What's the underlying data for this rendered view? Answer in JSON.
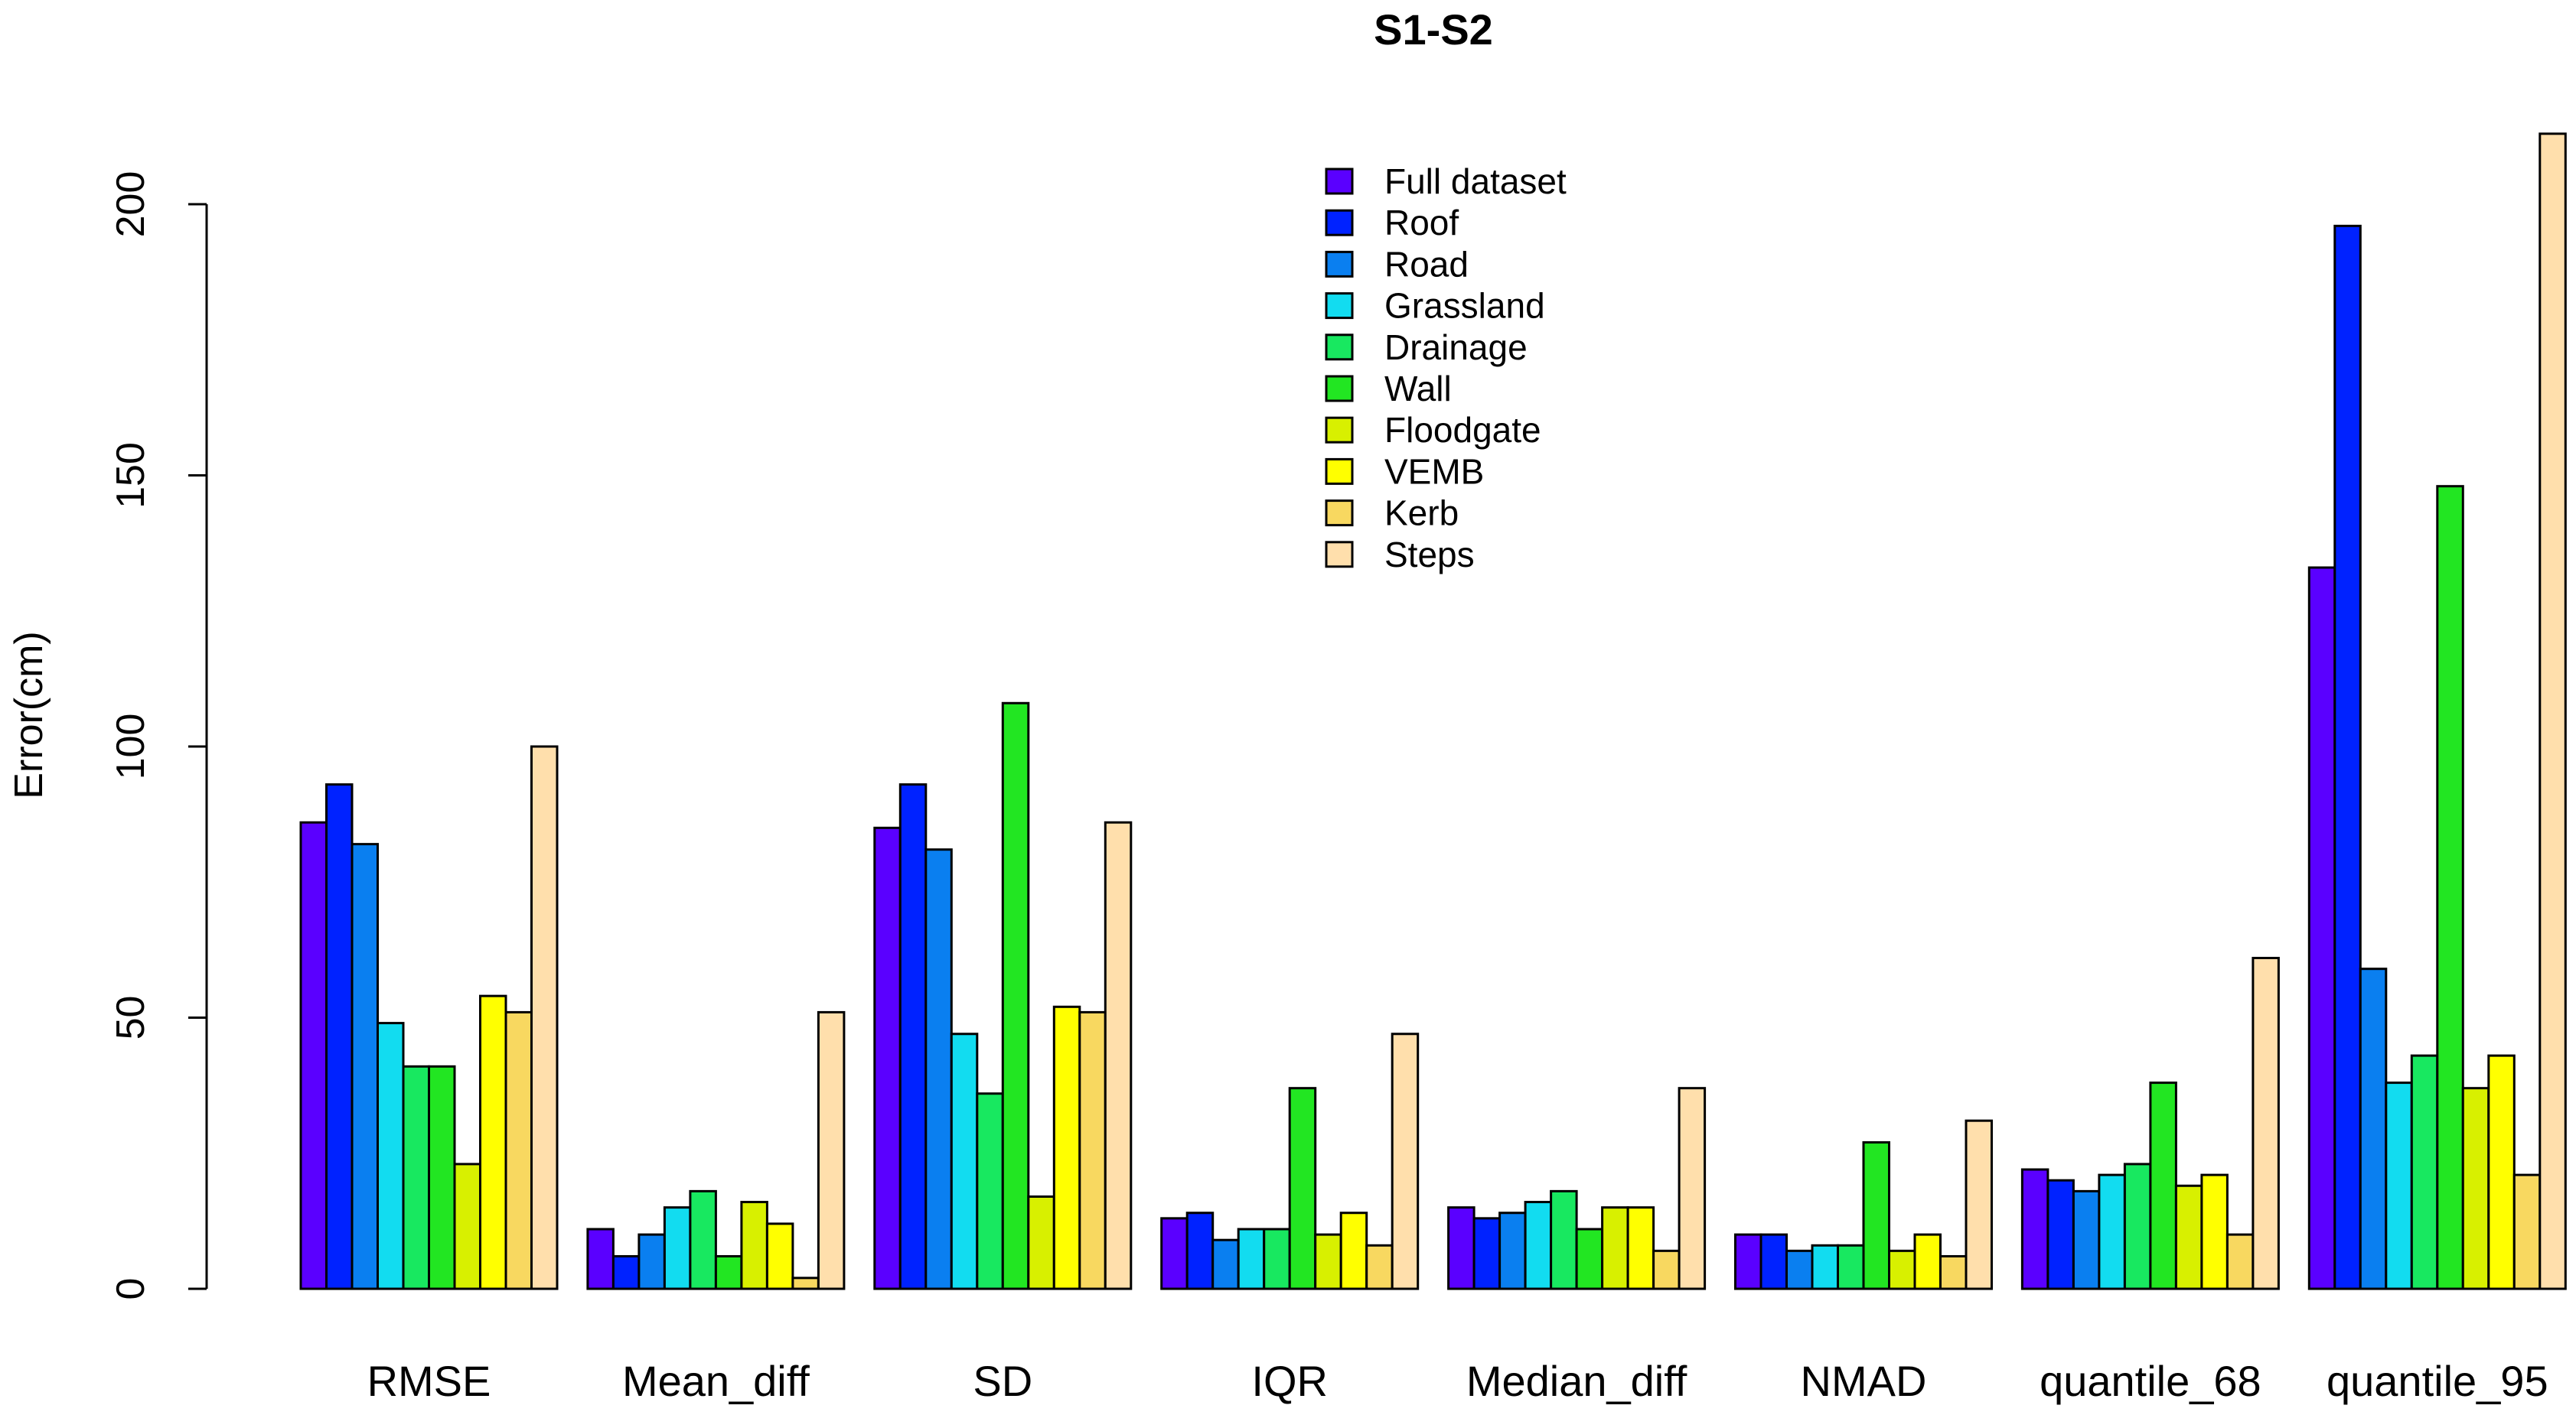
{
  "chart_data": {
    "type": "bar",
    "title": "S1-S2",
    "xlabel": "",
    "ylabel": "Error(cm)",
    "ylim": [
      0,
      215
    ],
    "yticks": [
      0,
      50,
      100,
      150,
      200
    ],
    "grid": false,
    "legend_position": "top-center",
    "categories": [
      "RMSE",
      "Mean_diff",
      "SD",
      "IQR",
      "Median_diff",
      "NMAD",
      "quantile_68",
      "quantile_95"
    ],
    "series": [
      {
        "name": "Full dataset",
        "color": "#5a00ff",
        "values": [
          86,
          11,
          85,
          13,
          15,
          10,
          22,
          133
        ]
      },
      {
        "name": "Roof",
        "color": "#0022ff",
        "values": [
          93,
          6,
          93,
          14,
          13,
          10,
          20,
          196
        ]
      },
      {
        "name": "Road",
        "color": "#0a7ff0",
        "values": [
          82,
          10,
          81,
          9,
          14,
          7,
          18,
          59
        ]
      },
      {
        "name": "Grassland",
        "color": "#12dcf0",
        "values": [
          49,
          15,
          47,
          11,
          16,
          8,
          21,
          38
        ]
      },
      {
        "name": "Drainage",
        "color": "#18e860",
        "values": [
          41,
          18,
          36,
          11,
          18,
          8,
          23,
          43
        ]
      },
      {
        "name": "Wall",
        "color": "#22e622",
        "values": [
          41,
          6,
          108,
          37,
          11,
          27,
          38,
          148
        ]
      },
      {
        "name": "Floodgate",
        "color": "#d8f000",
        "values": [
          23,
          16,
          17,
          10,
          15,
          7,
          19,
          37
        ]
      },
      {
        "name": "VEMB",
        "color": "#ffff00",
        "values": [
          54,
          12,
          52,
          14,
          15,
          10,
          21,
          43
        ]
      },
      {
        "name": "Kerb",
        "color": "#f8d860",
        "values": [
          51,
          2,
          51,
          8,
          7,
          6,
          10,
          21
        ]
      },
      {
        "name": "Steps",
        "color": "#ffdfac",
        "values": [
          100,
          51,
          86,
          47,
          37,
          31,
          61,
          213
        ]
      }
    ]
  }
}
